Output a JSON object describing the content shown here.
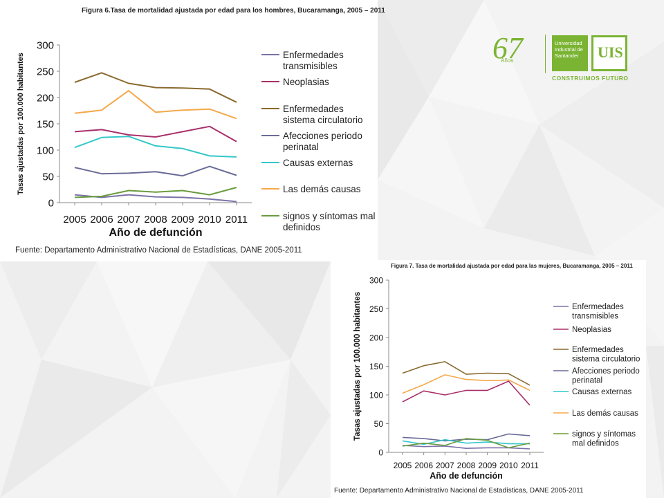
{
  "logo": {
    "number": "67",
    "anos": "Años",
    "university": "Universidad Industrial de Santander",
    "mark": "UIS",
    "motto": "CONSTRUIMOS FUTURO",
    "color": "#7bb433"
  },
  "chart_data": [
    {
      "type": "line",
      "title": "Figura 6.Tasa de mortalidad ajustada por edad para los hombres, Bucaramanga, 2005 – 2011",
      "xlabel": "Año de defunción",
      "ylabel": "Tasas ajustadas por 100.000 habitantes",
      "source": "Fuente: Departamento Administrativo Nacional de Estadísticas, DANE 2005-2011",
      "ylim": [
        0,
        300
      ],
      "yticks": [
        "0",
        "50",
        "100",
        "150",
        "200",
        "250",
        "300"
      ],
      "categories": [
        "2005",
        "2006",
        "2007",
        "2008",
        "2009",
        "2010",
        "2011"
      ],
      "legend_position": "right",
      "grid": false,
      "series": [
        {
          "name": "Enfermedades transmisibles",
          "legend_lines": [
            "Enfermedades",
            "transmisibles"
          ],
          "color": "#7b72a8",
          "values": [
            15,
            10,
            15,
            11,
            10,
            7,
            2
          ]
        },
        {
          "name": "Neoplasias",
          "legend_lines": [
            "Neoplasias"
          ],
          "color": "#a8306a",
          "values": [
            135,
            139,
            129,
            125,
            135,
            145,
            116
          ]
        },
        {
          "name": "Enfermedades sistema circulatorio",
          "legend_lines": [
            "Enfermedades",
            "sistema circulatorio"
          ],
          "color": "#8a6a2e",
          "values": [
            229,
            247,
            227,
            219,
            218,
            216,
            191
          ]
        },
        {
          "name": "Afecciones periodo perinatal",
          "legend_lines": [
            "Afecciones periodo",
            "perinatal"
          ],
          "color": "#6a6c98",
          "values": [
            67,
            55,
            56,
            59,
            51,
            69,
            52
          ]
        },
        {
          "name": "Causas externas",
          "legend_lines": [
            "Causas externas"
          ],
          "color": "#33c7c9",
          "values": [
            105,
            124,
            126,
            108,
            103,
            89,
            87
          ]
        },
        {
          "name": "Las demás causas",
          "legend_lines": [
            "Las demás causas"
          ],
          "color": "#f5a84a",
          "values": [
            170,
            176,
            213,
            172,
            176,
            178,
            160
          ]
        },
        {
          "name": "signos y síntomas mal definidos",
          "legend_lines": [
            "signos y síntomas mal",
            "definidos"
          ],
          "color": "#6a9c3e",
          "values": [
            10,
            12,
            23,
            20,
            23,
            15,
            29
          ]
        }
      ]
    },
    {
      "type": "line",
      "title": "Figura 7. Tasa de mortalidad ajustada por edad para las mujeres, Bucaramanga, 2005 – 2011",
      "xlabel": "Año de defunción",
      "ylabel": "Tasas ajustadas por 100.000 habitantes",
      "source": "Fuente: Departamento Administrativo Nacional de Estadísticas, DANE 2005-2011",
      "ylim": [
        0,
        300
      ],
      "yticks": [
        "0",
        "50",
        "100",
        "150",
        "200",
        "250",
        "300"
      ],
      "categories": [
        "2005",
        "2006",
        "2007",
        "2008",
        "2009",
        "2010",
        "2011"
      ],
      "legend_position": "right",
      "grid": false,
      "series": [
        {
          "name": "Enfermedades transmisibles",
          "legend_lines": [
            "Enfermedades",
            "transmisibles"
          ],
          "color": "#7b72a8",
          "values": [
            12,
            10,
            11,
            7,
            8,
            8,
            6
          ]
        },
        {
          "name": "Neoplasias",
          "legend_lines": [
            "Neoplasias"
          ],
          "color": "#a8306a",
          "values": [
            88,
            107,
            100,
            108,
            108,
            124,
            82
          ]
        },
        {
          "name": "Enfermedades sistema circulatorio",
          "legend_lines": [
            "Enfermedades",
            "sistema circulatorio"
          ],
          "color": "#8a6a2e",
          "values": [
            138,
            151,
            158,
            136,
            138,
            137,
            117
          ]
        },
        {
          "name": "Afecciones periodo perinatal",
          "legend_lines": [
            "Afecciones periodo",
            "perinatal"
          ],
          "color": "#6a6c98",
          "values": [
            26,
            24,
            20,
            23,
            22,
            32,
            29
          ]
        },
        {
          "name": "Causas externas",
          "legend_lines": [
            "Causas externas"
          ],
          "color": "#33c7c9",
          "values": [
            20,
            14,
            22,
            16,
            18,
            15,
            15
          ]
        },
        {
          "name": "Las demás causas",
          "legend_lines": [
            "Las demás causas"
          ],
          "color": "#f5a84a",
          "values": [
            103,
            118,
            135,
            127,
            125,
            126,
            108
          ]
        },
        {
          "name": "signos y síntomas mal definidos",
          "legend_lines": [
            "signos y síntomas",
            "mal definidos"
          ],
          "color": "#6a9c3e",
          "values": [
            11,
            16,
            12,
            24,
            21,
            8,
            16
          ]
        }
      ]
    }
  ]
}
